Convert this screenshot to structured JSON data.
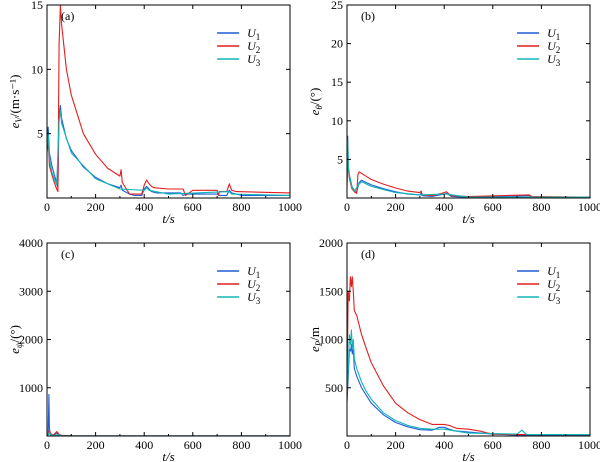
{
  "colors": {
    "U1": "#1f5fd6",
    "U2": "#e11f1f",
    "U3": "#12b5b5"
  },
  "chart_data": [
    {
      "type": "line",
      "panel_tag": "(a)",
      "ylabel_main": "e",
      "ylabel_sub": "V",
      "ylabel_unit": "/(m·s⁻¹)",
      "xlabel": "t/s",
      "xlim": [
        0,
        1000
      ],
      "ylim": [
        0,
        15
      ],
      "xticks": [
        "0",
        "200",
        "400",
        "600",
        "800",
        "1000"
      ],
      "yticks": [
        "5",
        "10",
        "15"
      ],
      "legend": [
        {
          "main": "U",
          "sub": "1"
        },
        {
          "main": "U",
          "sub": "2"
        },
        {
          "main": "U",
          "sub": "3"
        }
      ],
      "series": [
        {
          "name": "U1",
          "x": [
            0,
            5,
            10,
            20,
            30,
            40,
            45,
            50,
            55,
            60,
            80,
            100,
            150,
            200,
            250,
            300,
            305,
            310,
            340,
            360,
            390,
            400,
            410,
            420,
            430,
            450,
            550,
            560,
            570,
            600,
            700,
            710,
            740,
            750,
            760,
            780,
            800,
            1000
          ],
          "y": [
            4.5,
            5.5,
            3.5,
            2.5,
            1.8,
            1.2,
            0.8,
            6.5,
            7.2,
            6.2,
            4.6,
            3.7,
            2.4,
            1.6,
            1.1,
            0.8,
            1.0,
            0.6,
            0.3,
            0.2,
            0.2,
            0.7,
            0.9,
            0.7,
            0.5,
            0.4,
            0.4,
            0.2,
            0.3,
            0.3,
            0.3,
            0.2,
            0.2,
            0.6,
            0.4,
            0.3,
            0.2,
            0.2
          ]
        },
        {
          "name": "U2",
          "x": [
            0,
            5,
            10,
            20,
            30,
            40,
            45,
            50,
            55,
            60,
            80,
            100,
            150,
            200,
            250,
            300,
            305,
            310,
            330,
            340,
            360,
            390,
            400,
            410,
            420,
            430,
            440,
            500,
            560,
            570,
            600,
            700,
            705,
            710,
            740,
            750,
            760,
            780,
            1000
          ],
          "y": [
            3.5,
            4.5,
            2.5,
            1.8,
            1.2,
            0.7,
            0.5,
            12.0,
            15.0,
            13.5,
            10.0,
            8.0,
            5.0,
            3.4,
            2.3,
            1.7,
            2.2,
            1.2,
            0.6,
            0.3,
            0.3,
            0.3,
            1.0,
            1.4,
            1.1,
            0.9,
            0.8,
            0.7,
            0.7,
            0.2,
            0.6,
            0.6,
            0.2,
            0.5,
            0.5,
            1.1,
            0.6,
            0.5,
            0.4
          ]
        },
        {
          "name": "U3",
          "x": [
            0,
            5,
            10,
            20,
            30,
            40,
            50,
            55,
            60,
            100,
            200,
            300,
            400,
            410,
            420,
            500,
            750,
            760,
            1000
          ],
          "y": [
            4.0,
            5.0,
            3.0,
            2.0,
            1.5,
            1.0,
            6.0,
            6.8,
            5.8,
            3.5,
            1.5,
            0.7,
            0.6,
            0.8,
            0.6,
            0.3,
            0.5,
            0.3,
            0.2
          ]
        }
      ]
    },
    {
      "type": "line",
      "panel_tag": "(b)",
      "ylabel_main": "e",
      "ylabel_sub": "θ",
      "ylabel_unit": "/(°)",
      "xlabel": "t/s",
      "xlim": [
        0,
        1000
      ],
      "ylim": [
        0,
        25
      ],
      "xticks": [
        "0",
        "200",
        "400",
        "600",
        "800",
        "1000"
      ],
      "yticks": [
        "5",
        "10",
        "15",
        "20",
        "25"
      ],
      "legend": [
        {
          "main": "U",
          "sub": "1"
        },
        {
          "main": "U",
          "sub": "2"
        },
        {
          "main": "U",
          "sub": "3"
        }
      ],
      "series": [
        {
          "name": "U1",
          "x": [
            0,
            3,
            6,
            10,
            20,
            30,
            40,
            50,
            60,
            80,
            100,
            150,
            200,
            250,
            300,
            305,
            310,
            350,
            400,
            410,
            420,
            430,
            500,
            750,
            760,
            1000
          ],
          "y": [
            2.0,
            8.0,
            4.0,
            3.0,
            1.5,
            1.0,
            0.8,
            2.0,
            2.3,
            2.0,
            1.7,
            1.2,
            0.8,
            0.5,
            0.4,
            0.6,
            0.3,
            0.2,
            0.5,
            0.6,
            0.4,
            0.2,
            0.1,
            0.3,
            0.1,
            0.1
          ]
        },
        {
          "name": "U2",
          "x": [
            0,
            3,
            6,
            10,
            20,
            30,
            40,
            45,
            50,
            60,
            80,
            100,
            150,
            200,
            250,
            300,
            305,
            310,
            350,
            400,
            410,
            420,
            430,
            500,
            750,
            760,
            1000
          ],
          "y": [
            1.5,
            6.0,
            3.5,
            2.5,
            1.2,
            0.8,
            0.6,
            3.0,
            3.4,
            3.2,
            2.8,
            2.4,
            1.8,
            1.3,
            0.9,
            0.7,
            0.9,
            0.4,
            0.3,
            0.7,
            0.8,
            0.5,
            0.3,
            0.2,
            0.4,
            0.2,
            0.1
          ]
        },
        {
          "name": "U3",
          "x": [
            0,
            3,
            6,
            10,
            20,
            30,
            50,
            60,
            100,
            200,
            300,
            400,
            410,
            500,
            1000
          ],
          "y": [
            2.0,
            7.5,
            3.8,
            2.8,
            1.4,
            0.9,
            1.8,
            2.1,
            1.5,
            0.7,
            0.4,
            0.5,
            0.5,
            0.1,
            0.1
          ]
        }
      ]
    },
    {
      "type": "line",
      "panel_tag": "(c)",
      "ylabel_main": "e",
      "ylabel_sub": "ψ",
      "ylabel_unit": "/(°)",
      "xlabel": "t/s",
      "xlim": [
        0,
        1000
      ],
      "ylim": [
        0,
        4000
      ],
      "xticks": [
        "0",
        "200",
        "400",
        "600",
        "800",
        "1000"
      ],
      "yticks": [
        "1000",
        "2000",
        "3000",
        "4000"
      ],
      "legend": [
        {
          "main": "U",
          "sub": "1"
        },
        {
          "main": "U",
          "sub": "2"
        },
        {
          "main": "U",
          "sub": "3"
        }
      ],
      "series": [
        {
          "name": "U1",
          "x": [
            0,
            5,
            8,
            10,
            12,
            15,
            20,
            30,
            40,
            45,
            50,
            60,
            80,
            100,
            200,
            1000
          ],
          "y": [
            0,
            30,
            860,
            200,
            40,
            20,
            10,
            30,
            60,
            50,
            20,
            10,
            5,
            3,
            2,
            2
          ]
        },
        {
          "name": "U2",
          "x": [
            0,
            5,
            10,
            15,
            20,
            30,
            40,
            45,
            50,
            60,
            80,
            100,
            200,
            1000
          ],
          "y": [
            0,
            40,
            120,
            60,
            20,
            40,
            90,
            70,
            30,
            15,
            8,
            5,
            3,
            3
          ]
        },
        {
          "name": "U3",
          "x": [
            0,
            5,
            10,
            15,
            20,
            40,
            60,
            100,
            1000
          ],
          "y": [
            0,
            20,
            80,
            30,
            10,
            25,
            8,
            3,
            2
          ]
        }
      ]
    },
    {
      "type": "line",
      "panel_tag": "(d)",
      "ylabel_main": "e",
      "ylabel_sub": "P",
      "ylabel_unit": "/m",
      "xlabel": "t/s",
      "xlim": [
        0,
        1000
      ],
      "ylim": [
        0,
        2000
      ],
      "xticks": [
        "0",
        "200",
        "400",
        "600",
        "800",
        "1000"
      ],
      "yticks": [
        "500",
        "1000",
        "1500",
        "2000"
      ],
      "legend": [
        {
          "main": "U",
          "sub": "1"
        },
        {
          "main": "U",
          "sub": "2"
        },
        {
          "main": "U",
          "sub": "3"
        }
      ],
      "series": [
        {
          "name": "U1",
          "x": [
            0,
            5,
            10,
            15,
            18,
            22,
            26,
            30,
            40,
            60,
            80,
            100,
            150,
            200,
            250,
            300,
            350,
            380,
            400,
            420,
            440,
            500,
            600,
            700,
            1000
          ],
          "y": [
            350,
            600,
            900,
            880,
            950,
            850,
            900,
            700,
            620,
            500,
            420,
            340,
            220,
            140,
            95,
            65,
            60,
            90,
            90,
            70,
            55,
            40,
            20,
            10,
            10
          ]
        },
        {
          "name": "U2",
          "x": [
            0,
            5,
            10,
            14,
            18,
            22,
            26,
            30,
            40,
            60,
            80,
            100,
            150,
            200,
            250,
            300,
            350,
            400,
            420,
            450,
            500,
            550,
            580,
            600,
            700,
            1000
          ],
          "y": [
            500,
            1500,
            1400,
            1650,
            1550,
            1650,
            1500,
            1300,
            1250,
            1050,
            900,
            760,
            520,
            340,
            240,
            170,
            120,
            120,
            110,
            80,
            70,
            50,
            30,
            20,
            15,
            15
          ]
        },
        {
          "name": "U3",
          "x": [
            0,
            5,
            10,
            14,
            18,
            22,
            26,
            30,
            40,
            60,
            80,
            100,
            150,
            200,
            250,
            300,
            350,
            400,
            450,
            500,
            700,
            710,
            720,
            730,
            740,
            1000
          ],
          "y": [
            400,
            700,
            1050,
            950,
            1100,
            900,
            1000,
            800,
            700,
            560,
            460,
            380,
            240,
            160,
            110,
            80,
            70,
            70,
            50,
            30,
            20,
            40,
            60,
            35,
            15,
            15
          ]
        }
      ]
    }
  ]
}
